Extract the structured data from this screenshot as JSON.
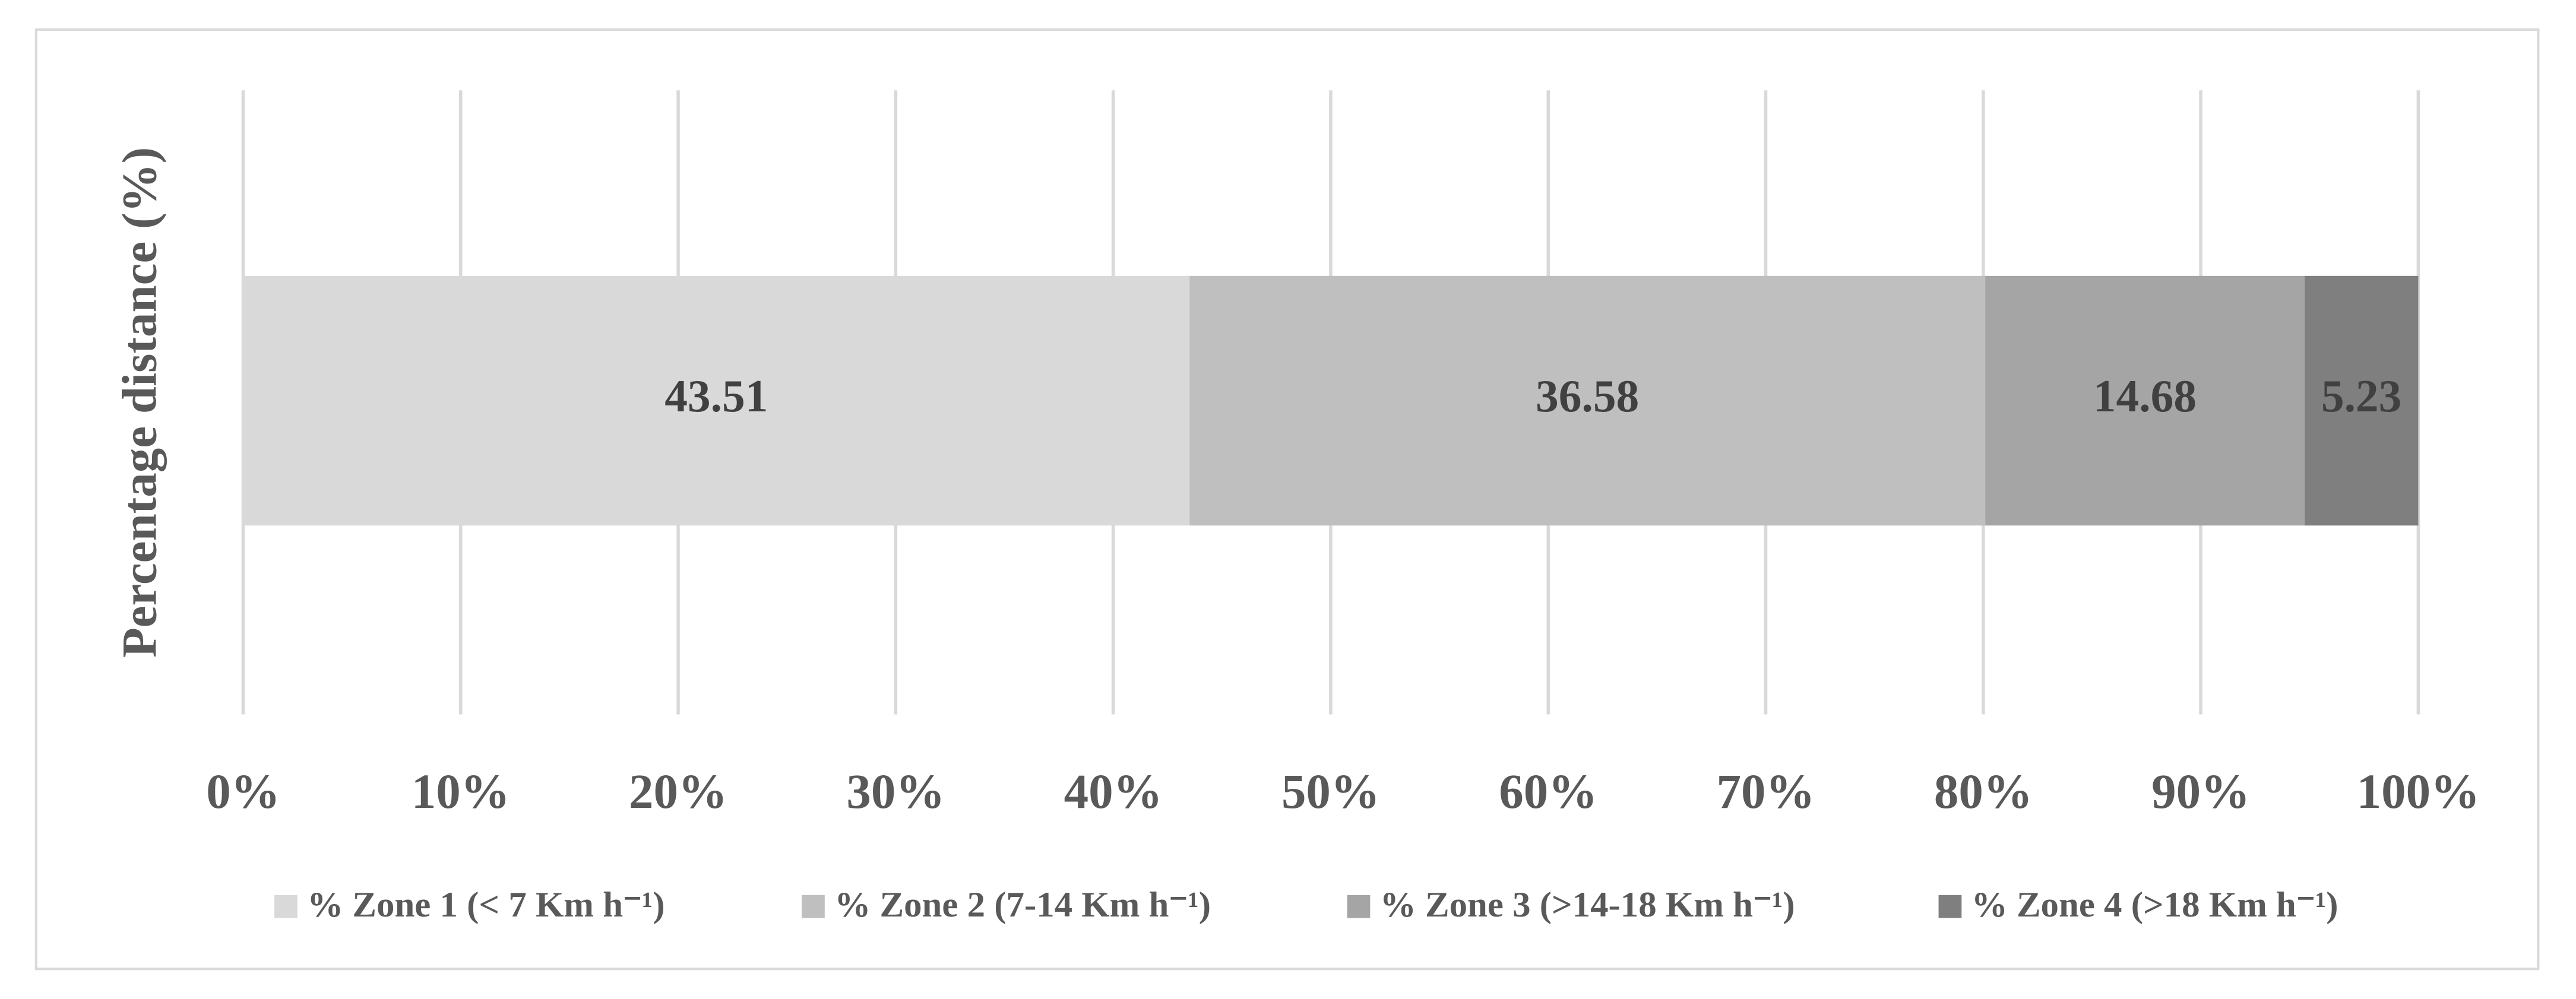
{
  "chart_data": {
    "type": "bar",
    "orientation": "horizontal",
    "stacked": true,
    "y_label": "Percentage distance (%)",
    "categories": [
      null
    ],
    "series": [
      {
        "name": "% Zone 1 (< 7 Km h⁻¹)",
        "color": "#d9d9d9",
        "values": [
          43.51
        ]
      },
      {
        "name": "% Zone 2 (7-14 Km h⁻¹)",
        "color": "#bfbfbf",
        "values": [
          36.58
        ]
      },
      {
        "name": "% Zone 3 (>14-18 Km h⁻¹)",
        "color": "#a5a5a5",
        "values": [
          14.68
        ]
      },
      {
        "name": "% Zone 4 (>18 Km h⁻¹)",
        "color": "#7f7f7f",
        "values": [
          5.23
        ]
      }
    ],
    "xlim": [
      0,
      100
    ],
    "xticks": [
      {
        "value": 0,
        "label": "0%"
      },
      {
        "value": 10,
        "label": "10%"
      },
      {
        "value": 20,
        "label": "20%"
      },
      {
        "value": 30,
        "label": "30%"
      },
      {
        "value": 40,
        "label": "40%"
      },
      {
        "value": 50,
        "label": "50%"
      },
      {
        "value": 60,
        "label": "60%"
      },
      {
        "value": 70,
        "label": "70%"
      },
      {
        "value": 80,
        "label": "80%"
      },
      {
        "value": 90,
        "label": "90%"
      },
      {
        "value": 100,
        "label": "100%"
      }
    ],
    "grid": true,
    "legend": "bottom"
  }
}
